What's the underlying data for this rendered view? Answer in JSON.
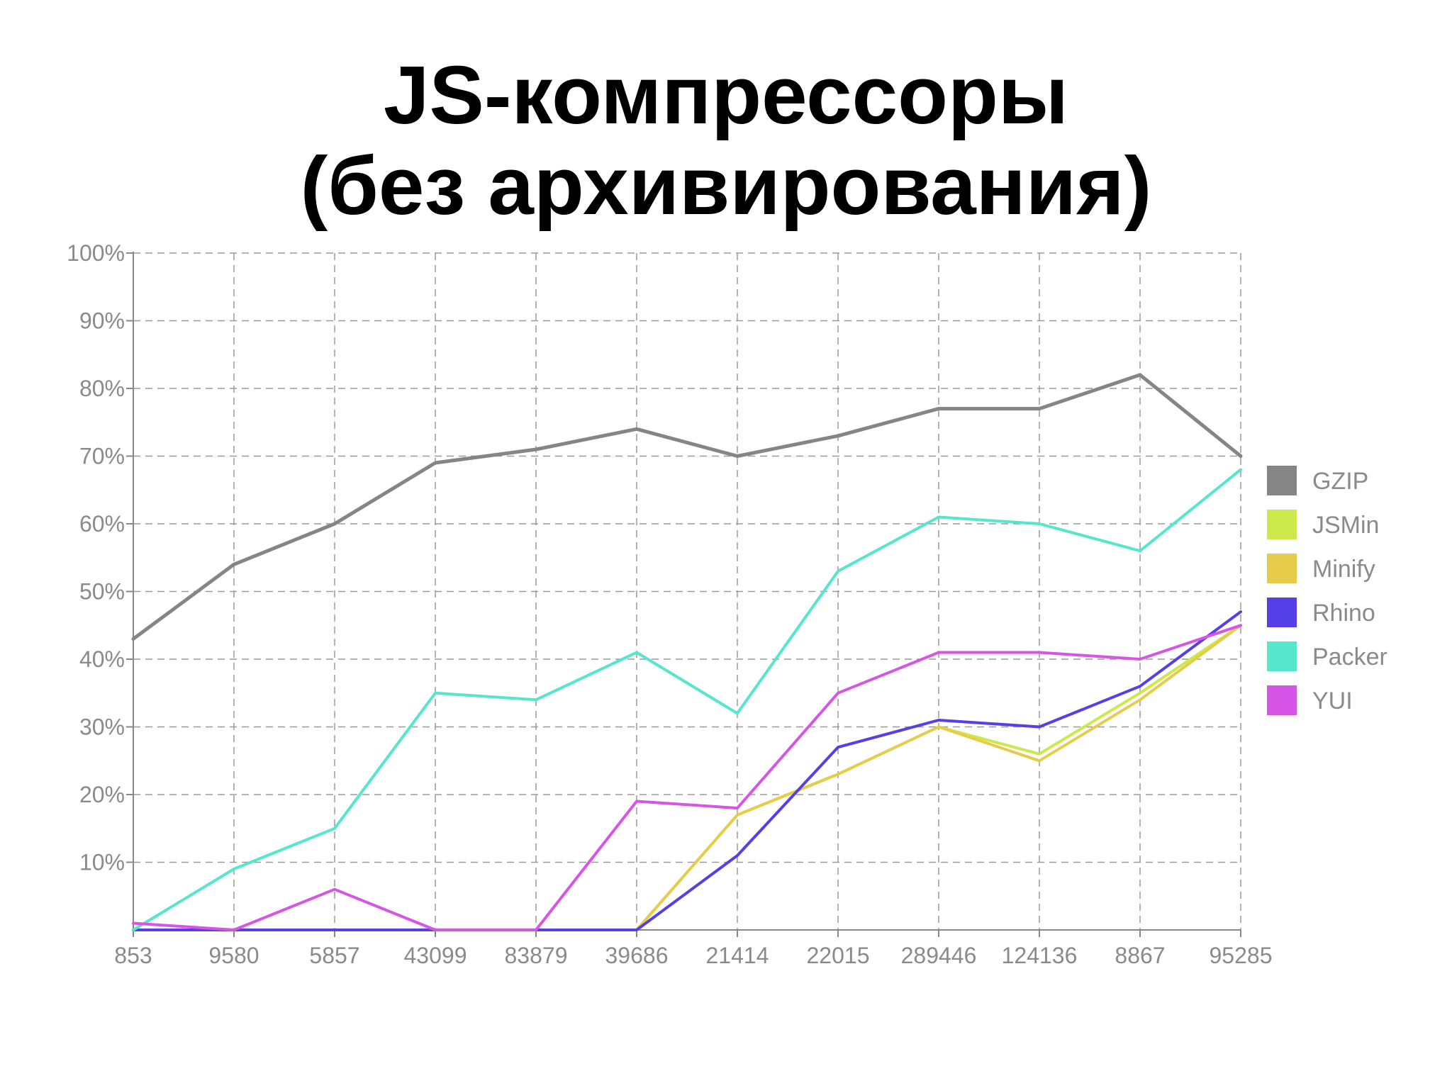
{
  "slide": {
    "title_line1": "JS-компрессоры",
    "title_line2": "(без архивирования)"
  },
  "chart_data": {
    "type": "line",
    "categories": [
      "853",
      "9580",
      "5857",
      "43099",
      "83879",
      "39686",
      "21414",
      "22015",
      "289446",
      "124136",
      "8867",
      "95285"
    ],
    "y_ticks": [
      "100%",
      "90%",
      "80%",
      "70%",
      "60%",
      "50%",
      "40%",
      "30%",
      "20%",
      "10%"
    ],
    "ylim": [
      0,
      100
    ],
    "grid": true,
    "legend_position": "right",
    "series": [
      {
        "name": "GZIP",
        "color": "#858585",
        "values": [
          43,
          54,
          60,
          69,
          71,
          74,
          70,
          73,
          77,
          77,
          82,
          70
        ]
      },
      {
        "name": "JSMin",
        "color": "#cde84a",
        "values": [
          0,
          0,
          0,
          0,
          0,
          0,
          17,
          23,
          30,
          26,
          35,
          45
        ]
      },
      {
        "name": "Minify",
        "color": "#e6cc4a",
        "values": [
          0,
          0,
          0,
          0,
          0,
          0,
          17,
          23,
          30,
          25,
          34,
          45
        ]
      },
      {
        "name": "Rhino",
        "color": "#5540e6",
        "values": [
          0,
          0,
          0,
          0,
          0,
          0,
          11,
          27,
          31,
          30,
          36,
          47
        ]
      },
      {
        "name": "Packer",
        "color": "#55e6cc",
        "values": [
          0,
          9,
          15,
          35,
          34,
          41,
          32,
          53,
          61,
          60,
          56,
          68
        ]
      },
      {
        "name": "YUI",
        "color": "#d655e6",
        "values": [
          1,
          0,
          6,
          0,
          0,
          19,
          18,
          35,
          41,
          41,
          40,
          45
        ]
      }
    ]
  }
}
